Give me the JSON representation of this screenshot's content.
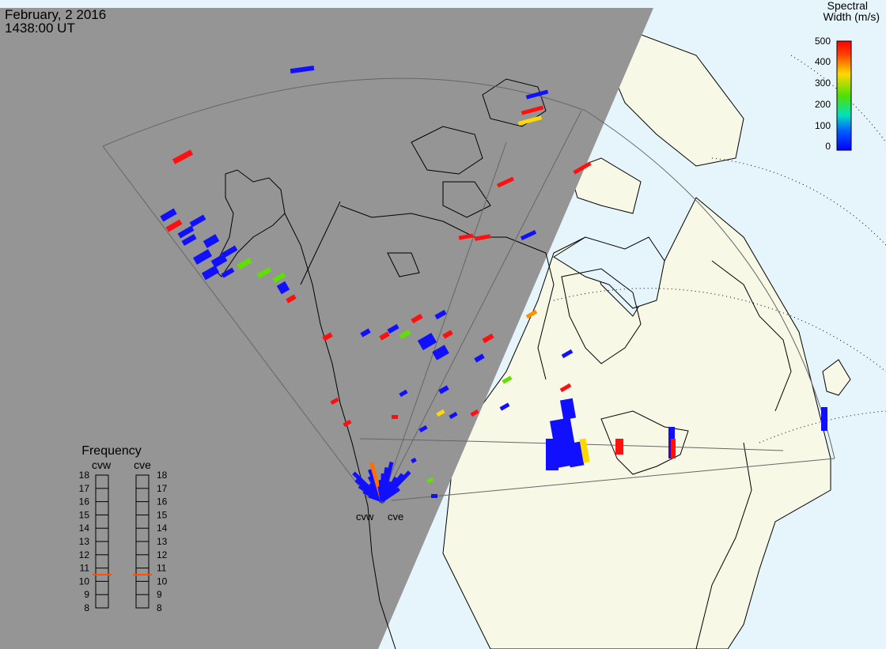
{
  "header": {
    "date": "February, 2 2016",
    "time": "1438:00 UT"
  },
  "stations": {
    "west": "cvw",
    "east": "cve"
  },
  "colorbar": {
    "title_line1": "Spectral",
    "title_line2": "Width (m/s)",
    "ticks": [
      "500",
      "400",
      "300",
      "200",
      "100",
      "0"
    ],
    "colors": [
      "#ff0000",
      "#ff8000",
      "#ffd800",
      "#50e000",
      "#00e0c0",
      "#0040ff",
      "#0000ff"
    ]
  },
  "frequency_panel": {
    "title": "Frequency",
    "left_label": "cvw",
    "right_label": "cve",
    "ticks": [
      "18",
      "17",
      "16",
      "15",
      "14",
      "13",
      "12",
      "11",
      "10",
      "9",
      "8"
    ],
    "cvw_value_mhz": 10.5,
    "cve_value_mhz": 10.5,
    "marker_color": "#ff5000"
  },
  "map_colors": {
    "night": "#959595",
    "day_land": "#f8f8e6",
    "ocean": "#e6f4fb",
    "coast": "#000000",
    "fov_line": "#666666",
    "grid_dots": "#000000"
  }
}
